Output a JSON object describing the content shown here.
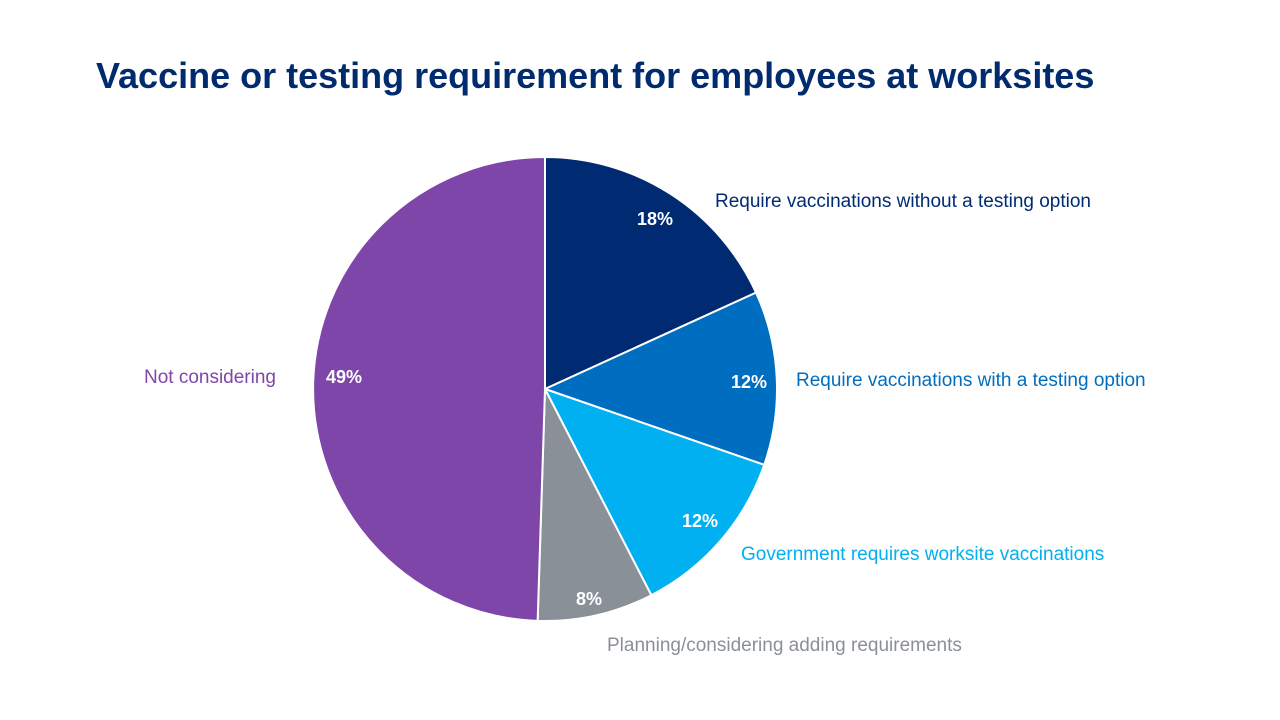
{
  "chart_data": {
    "type": "pie",
    "title": "Vaccine or testing requirement for employees at worksites",
    "slices": [
      {
        "label": "Require vaccinations without a testing option",
        "value": 18,
        "display": "18%",
        "color": "#002b73"
      },
      {
        "label": "Require vaccinations with a testing option",
        "value": 12,
        "display": "12%",
        "color": "#006ec0"
      },
      {
        "label": "Government requires worksite vaccinations",
        "value": 12,
        "display": "12%",
        "color": "#00b0f0"
      },
      {
        "label": "Planning/considering adding requirements",
        "value": 8,
        "display": "8%",
        "color": "#8a9097"
      },
      {
        "label": "Not considering",
        "value": 49,
        "display": "49%",
        "color": "#7f46aa"
      }
    ],
    "label_color_by_slice": [
      "#002b73",
      "#006ec0",
      "#00b0f0",
      "#8a9097",
      "#7f46aa"
    ]
  }
}
